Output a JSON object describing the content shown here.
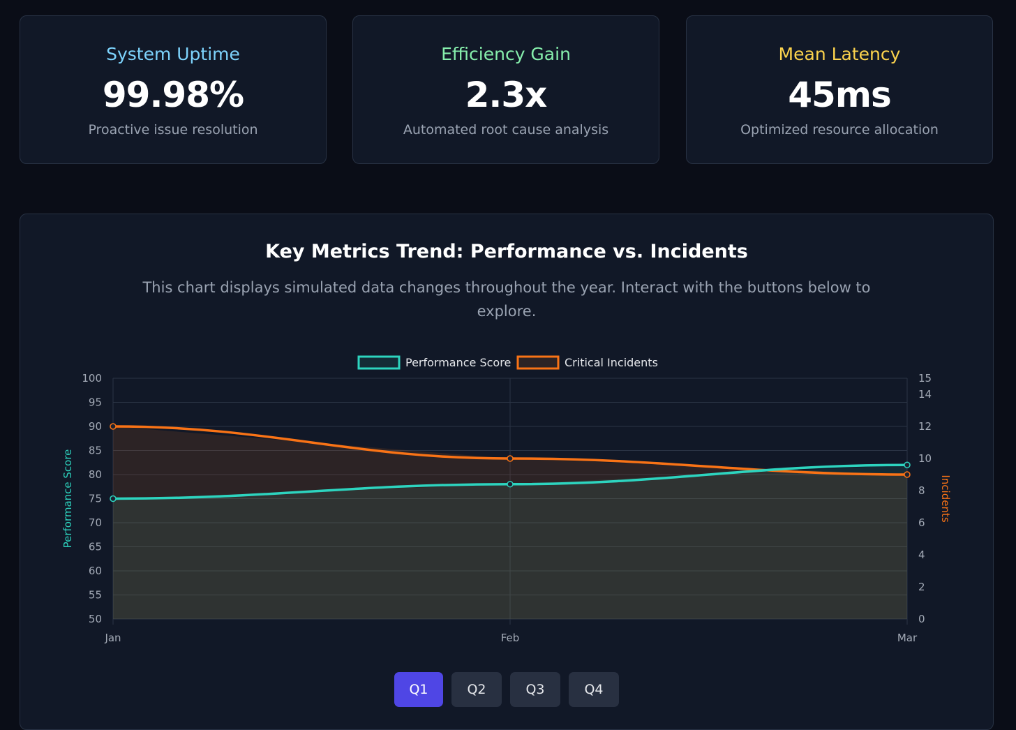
{
  "stats": [
    {
      "title": "System Uptime",
      "value": "99.98%",
      "desc": "Proactive issue resolution",
      "color": "#7dd3fc"
    },
    {
      "title": "Efficiency Gain",
      "value": "2.3x",
      "desc": "Automated root cause analysis",
      "color": "#86efac"
    },
    {
      "title": "Mean Latency",
      "value": "45ms",
      "desc": "Optimized resource allocation",
      "color": "#fcd34d"
    }
  ],
  "chart_panel": {
    "title": "Key Metrics Trend: Performance vs. Incidents",
    "subtitle": "This chart displays simulated data changes throughout the year. Interact with the buttons below to explore."
  },
  "chart_data": {
    "type": "line",
    "categories": [
      "Jan",
      "Feb",
      "Mar"
    ],
    "series": [
      {
        "name": "Performance Score",
        "axis": "left",
        "values": [
          75,
          78,
          82
        ],
        "color": "#2dd4bf",
        "fill": "rgba(45,212,191,0.10)"
      },
      {
        "name": "Critical Incidents",
        "axis": "right",
        "values": [
          12,
          10,
          9
        ],
        "color": "#f97316",
        "fill": "rgba(249,115,22,0.12)"
      }
    ],
    "y_left": {
      "label": "Performance Score",
      "min": 50,
      "max": 100,
      "ticks": [
        50,
        55,
        60,
        65,
        70,
        75,
        80,
        85,
        90,
        95,
        100
      ],
      "color": "#2dd4bf"
    },
    "y_right": {
      "label": "Incidents",
      "min": 0,
      "max": 15,
      "ticks": [
        0,
        2,
        4,
        6,
        8,
        10,
        12,
        14,
        15
      ],
      "color": "#f97316"
    },
    "legend": "top-center",
    "grid": true
  },
  "quarter_buttons": [
    {
      "label": "Q1",
      "active": true
    },
    {
      "label": "Q2",
      "active": false
    },
    {
      "label": "Q3",
      "active": false
    },
    {
      "label": "Q4",
      "active": false
    }
  ]
}
